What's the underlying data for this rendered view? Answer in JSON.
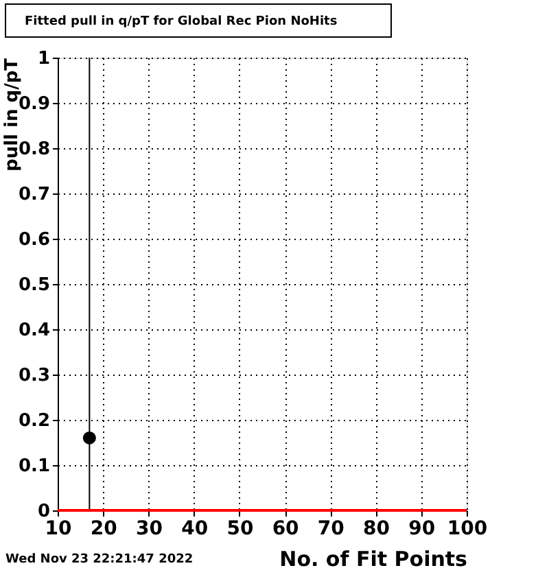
{
  "chart_data": {
    "type": "scatter",
    "title": "Fitted pull in q/pT for Global Rec Pion NoHits",
    "xlabel": "No. of Fit Points",
    "ylabel": "pull in q/pT",
    "annotations": [
      "Wed Nov 23 22:21:47 2022"
    ],
    "series": [
      {
        "type": "scatter",
        "color": "#000000",
        "x": [
          17
        ],
        "values": [
          0.16
        ],
        "errors": [
          [
            0,
            1
          ]
        ],
        "marker": "circle"
      },
      {
        "type": "line",
        "color": "#ff0000",
        "x": [
          10,
          100
        ],
        "values": [
          0,
          0
        ]
      }
    ],
    "xlim": [
      10,
      100
    ],
    "xticks": [
      10,
      20,
      30,
      40,
      50,
      60,
      70,
      80,
      90,
      100
    ],
    "ylim": [
      0,
      1
    ],
    "yticks": [
      0,
      0.1,
      0.2,
      0.3,
      0.4,
      0.5,
      0.6,
      0.7,
      0.8,
      0.9,
      1
    ],
    "grid": true,
    "legend": false
  }
}
